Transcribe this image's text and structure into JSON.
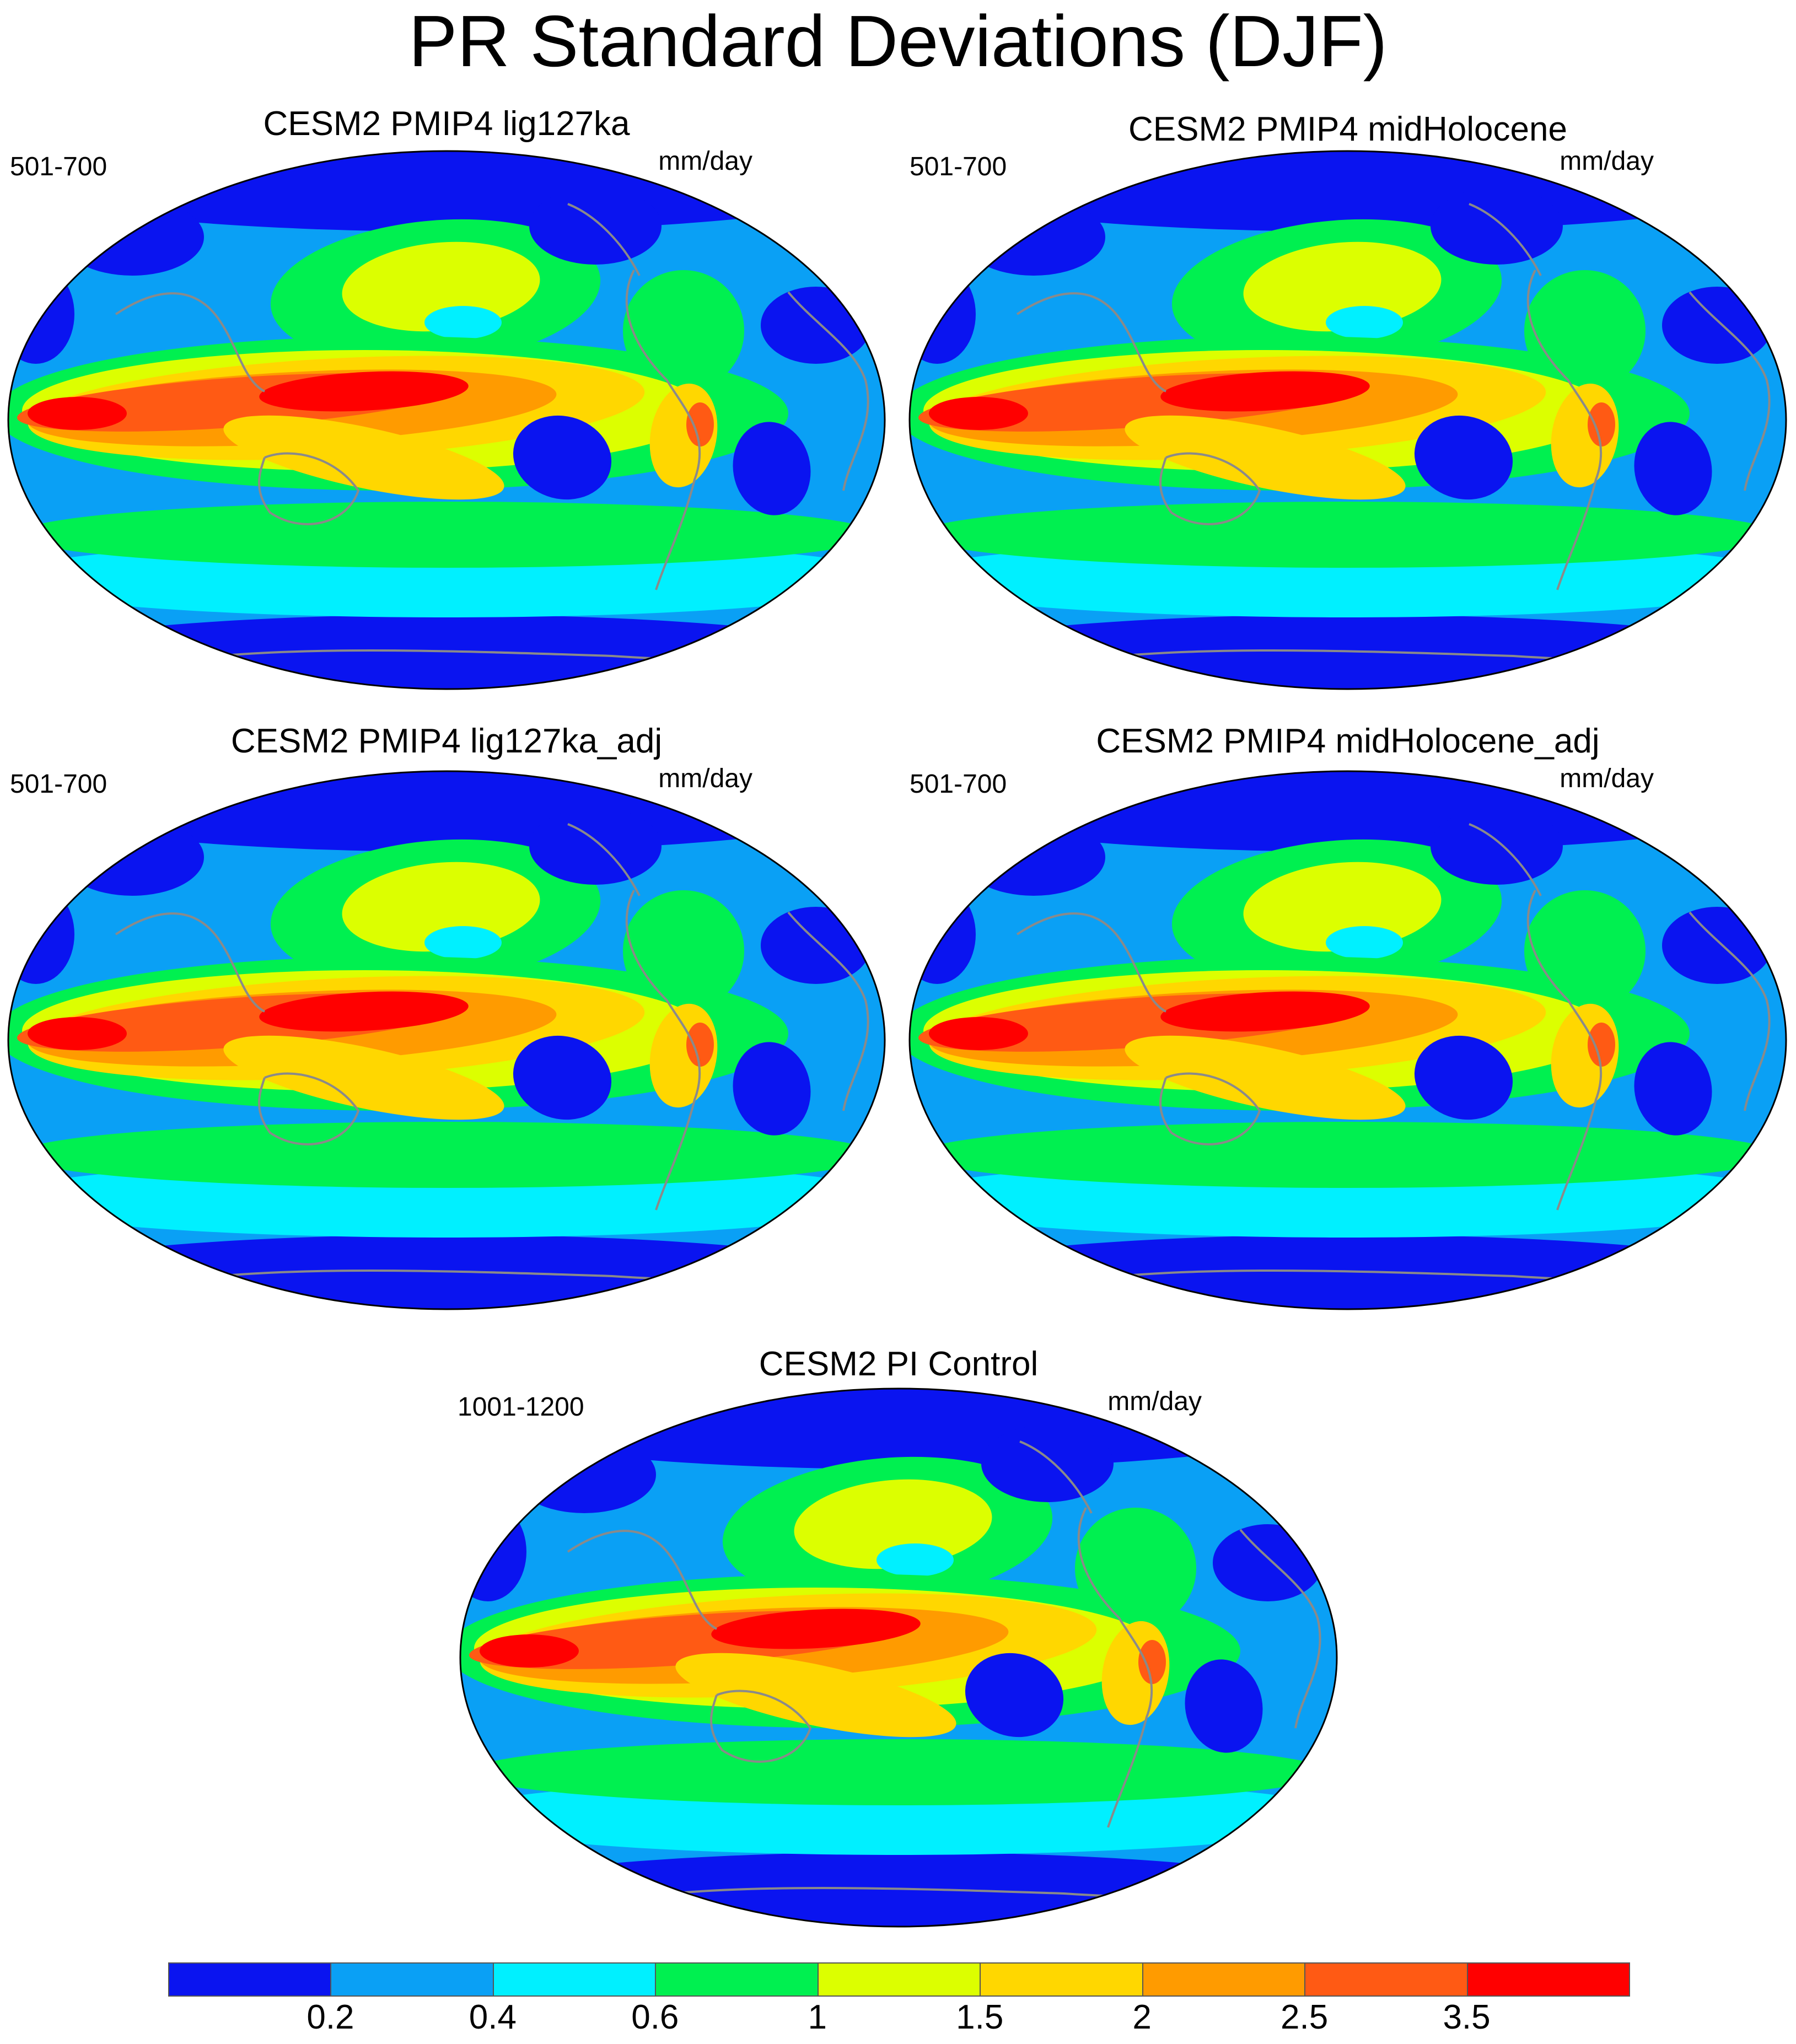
{
  "title": "PR Standard Deviations (DJF)",
  "chart_data": {
    "type": "heatmap",
    "projection": "Robinson-style global map, Pacific-centered",
    "field": "Precipitation (PR) interannual standard deviation, DJF season",
    "units": "mm/day",
    "panels": [
      {
        "title": "CESM2 PMIP4 lig127ka",
        "years": "501-700",
        "units": "mm/day"
      },
      {
        "title": "CESM2 PMIP4 midHolocene",
        "years": "501-700",
        "units": "mm/day"
      },
      {
        "title": "CESM2 PMIP4 lig127ka_adj",
        "years": "501-700",
        "units": "mm/day"
      },
      {
        "title": "CESM2 PMIP4 midHolocene_adj",
        "years": "501-700",
        "units": "mm/day"
      },
      {
        "title": "CESM2 PI Control",
        "years": "1001-1200",
        "units": "mm/day"
      }
    ],
    "colorbar": {
      "levels": [
        "0.2",
        "0.4",
        "0.6",
        "1",
        "1.5",
        "2",
        "2.5",
        "3.5"
      ],
      "colors": [
        "#0a14f0",
        "#0aa0f5",
        "#00f0ff",
        "#00f050",
        "#dcff00",
        "#ffd700",
        "#ff9b00",
        "#ff5a14",
        "#ff0000"
      ]
    }
  }
}
